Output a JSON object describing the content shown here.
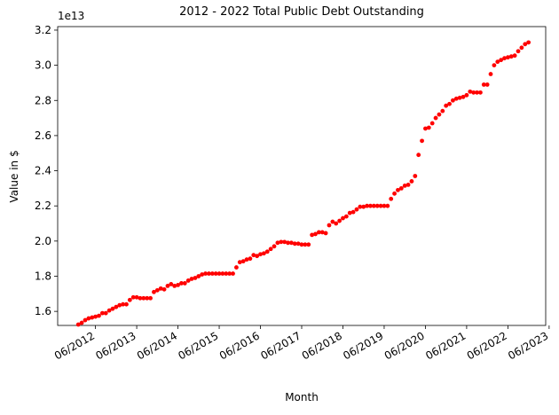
{
  "chart_data": {
    "type": "scatter",
    "title": "2012 - 2022 Total Public Debt Outstanding",
    "x_label": "Month",
    "y_label": "Value in $",
    "y_offset_label": "1e13",
    "color": "#ff0000",
    "x": [
      "2012-01",
      "2012-02",
      "2012-03",
      "2012-04",
      "2012-05",
      "2012-06",
      "2012-07",
      "2012-08",
      "2012-09",
      "2012-10",
      "2012-11",
      "2012-12",
      "2013-01",
      "2013-02",
      "2013-03",
      "2013-04",
      "2013-05",
      "2013-06",
      "2013-07",
      "2013-08",
      "2013-09",
      "2013-10",
      "2013-11",
      "2013-12",
      "2014-01",
      "2014-02",
      "2014-03",
      "2014-04",
      "2014-05",
      "2014-06",
      "2014-07",
      "2014-08",
      "2014-09",
      "2014-10",
      "2014-11",
      "2014-12",
      "2015-01",
      "2015-02",
      "2015-03",
      "2015-04",
      "2015-05",
      "2015-06",
      "2015-07",
      "2015-08",
      "2015-09",
      "2015-10",
      "2015-11",
      "2015-12",
      "2016-01",
      "2016-02",
      "2016-03",
      "2016-04",
      "2016-05",
      "2016-06",
      "2016-07",
      "2016-08",
      "2016-09",
      "2016-10",
      "2016-11",
      "2016-12",
      "2017-01",
      "2017-02",
      "2017-03",
      "2017-04",
      "2017-05",
      "2017-06",
      "2017-07",
      "2017-08",
      "2017-09",
      "2017-10",
      "2017-11",
      "2017-12",
      "2018-01",
      "2018-02",
      "2018-03",
      "2018-04",
      "2018-05",
      "2018-06",
      "2018-07",
      "2018-08",
      "2018-09",
      "2018-10",
      "2018-11",
      "2018-12",
      "2019-01",
      "2019-02",
      "2019-03",
      "2019-04",
      "2019-05",
      "2019-06",
      "2019-07",
      "2019-08",
      "2019-09",
      "2019-10",
      "2019-11",
      "2019-12",
      "2020-01",
      "2020-02",
      "2020-03",
      "2020-04",
      "2020-05",
      "2020-06",
      "2020-07",
      "2020-08",
      "2020-09",
      "2020-10",
      "2020-11",
      "2020-12",
      "2021-01",
      "2021-02",
      "2021-03",
      "2021-04",
      "2021-05",
      "2021-06",
      "2021-07",
      "2021-08",
      "2021-09",
      "2021-10",
      "2021-11",
      "2021-12",
      "2022-01",
      "2022-02",
      "2022-03",
      "2022-04",
      "2022-05",
      "2022-06",
      "2022-07",
      "2022-08",
      "2022-09",
      "2022-10",
      "2022-11",
      "2022-12"
    ],
    "values": [
      1.525,
      1.535,
      1.55,
      1.56,
      1.565,
      1.57,
      1.575,
      1.59,
      1.59,
      1.605,
      1.615,
      1.625,
      1.635,
      1.64,
      1.64,
      1.665,
      1.68,
      1.68,
      1.675,
      1.675,
      1.675,
      1.675,
      1.71,
      1.72,
      1.73,
      1.725,
      1.745,
      1.755,
      1.745,
      1.75,
      1.76,
      1.76,
      1.775,
      1.785,
      1.79,
      1.8,
      1.81,
      1.815,
      1.815,
      1.815,
      1.815,
      1.815,
      1.815,
      1.815,
      1.815,
      1.815,
      1.85,
      1.88,
      1.885,
      1.895,
      1.9,
      1.92,
      1.915,
      1.925,
      1.93,
      1.94,
      1.955,
      1.97,
      1.99,
      1.995,
      1.995,
      1.99,
      1.99,
      1.985,
      1.985,
      1.98,
      1.98,
      1.98,
      2.035,
      2.04,
      2.05,
      2.05,
      2.045,
      2.09,
      2.11,
      2.1,
      2.115,
      2.13,
      2.14,
      2.16,
      2.165,
      2.18,
      2.195,
      2.195,
      2.2,
      2.2,
      2.2,
      2.2,
      2.2,
      2.2,
      2.2,
      2.24,
      2.27,
      2.29,
      2.3,
      2.315,
      2.32,
      2.34,
      2.37,
      2.49,
      2.57,
      2.64,
      2.645,
      2.67,
      2.7,
      2.72,
      2.74,
      2.77,
      2.78,
      2.8,
      2.81,
      2.815,
      2.82,
      2.83,
      2.85,
      2.845,
      2.845,
      2.845,
      2.89,
      2.89,
      2.95,
      3.0,
      3.02,
      3.03,
      3.04,
      3.045,
      3.05,
      3.055,
      3.08,
      3.1,
      3.12,
      3.13
    ],
    "xlim": [
      "2011-07",
      "2023-05"
    ],
    "xticks": [
      {
        "value": "2012-06",
        "label": "06/2012"
      },
      {
        "value": "2013-06",
        "label": "06/2013"
      },
      {
        "value": "2014-06",
        "label": "06/2014"
      },
      {
        "value": "2015-06",
        "label": "06/2015"
      },
      {
        "value": "2016-06",
        "label": "06/2016"
      },
      {
        "value": "2017-06",
        "label": "06/2017"
      },
      {
        "value": "2018-06",
        "label": "06/2018"
      },
      {
        "value": "2019-06",
        "label": "06/2019"
      },
      {
        "value": "2020-06",
        "label": "06/2020"
      },
      {
        "value": "2021-06",
        "label": "06/2021"
      },
      {
        "value": "2022-06",
        "label": "06/2022"
      },
      {
        "value": "2023-06",
        "label": "06/2023"
      }
    ],
    "ylim": [
      1.52,
      3.22
    ],
    "yticks": [
      1.6,
      1.8,
      {
        "value": 2,
        "label": "2.0"
      },
      2.2,
      2.4,
      2.6,
      2.8,
      {
        "value": 3,
        "label": "3.0"
      },
      3.2
    ]
  }
}
